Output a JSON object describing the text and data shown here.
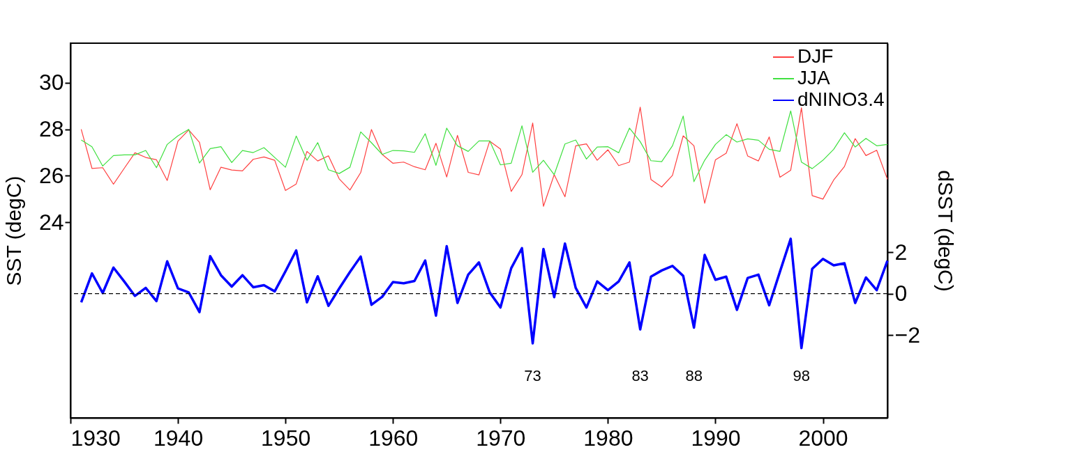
{
  "chart_data": {
    "type": "line",
    "xlabel": null,
    "ylabel": "SST (degC)",
    "y2label": "dSST (degC)",
    "x": [
      1931,
      1932,
      1933,
      1934,
      1935,
      1936,
      1937,
      1938,
      1939,
      1940,
      1941,
      1942,
      1943,
      1944,
      1945,
      1946,
      1947,
      1948,
      1949,
      1950,
      1951,
      1952,
      1953,
      1954,
      1955,
      1956,
      1957,
      1958,
      1959,
      1960,
      1961,
      1962,
      1963,
      1964,
      1965,
      1966,
      1967,
      1968,
      1969,
      1970,
      1971,
      1972,
      1973,
      1974,
      1975,
      1976,
      1977,
      1978,
      1979,
      1980,
      1981,
      1982,
      1983,
      1984,
      1985,
      1986,
      1987,
      1988,
      1989,
      1990,
      1991,
      1992,
      1993,
      1994,
      1995,
      1996,
      1997,
      1998,
      1999,
      2000,
      2001,
      2002,
      2003,
      2004,
      2005,
      2006
    ],
    "series": [
      {
        "name": "DJF",
        "color": "#ff4040",
        "values": [
          28.0,
          26.32,
          26.35,
          25.64,
          26.32,
          26.99,
          26.79,
          26.69,
          25.8,
          27.49,
          27.97,
          27.44,
          25.4,
          26.37,
          26.25,
          26.21,
          26.71,
          26.81,
          26.67,
          25.37,
          25.65,
          27.05,
          26.64,
          26.86,
          25.87,
          25.39,
          26.14,
          27.99,
          26.92,
          26.54,
          26.59,
          26.39,
          26.26,
          27.4,
          25.95,
          27.74,
          26.15,
          26.04,
          27.49,
          27.15,
          25.33,
          26.05,
          28.27,
          24.69,
          26.05,
          25.1,
          27.29,
          27.37,
          26.67,
          27.12,
          26.44,
          26.59,
          28.95,
          25.84,
          25.52,
          26.02,
          27.72,
          27.29,
          24.82,
          26.69,
          26.97,
          28.24,
          26.85,
          26.64,
          27.67,
          25.94,
          26.24,
          28.92,
          25.15,
          25.0,
          25.82,
          26.4,
          27.6,
          26.87,
          27.1,
          25.85
        ]
      },
      {
        "name": "JJA",
        "color": "#40e040",
        "values": [
          27.54,
          27.25,
          26.42,
          26.87,
          26.9,
          26.9,
          27.09,
          26.35,
          27.35,
          27.72,
          28.0,
          26.55,
          27.17,
          27.25,
          26.57,
          27.09,
          27.0,
          27.21,
          26.79,
          26.37,
          27.71,
          26.67,
          27.43,
          26.26,
          26.1,
          26.37,
          27.89,
          27.42,
          26.92,
          27.09,
          27.07,
          27.01,
          27.81,
          26.45,
          28.05,
          27.29,
          27.05,
          27.5,
          27.5,
          26.47,
          26.54,
          28.15,
          26.15,
          26.67,
          26.05,
          27.37,
          27.54,
          26.72,
          27.24,
          27.25,
          26.99,
          28.05,
          27.47,
          26.65,
          26.61,
          27.29,
          28.57,
          25.75,
          26.67,
          27.35,
          27.77,
          27.45,
          27.59,
          27.53,
          27.14,
          27.05,
          28.79,
          26.59,
          26.31,
          26.67,
          27.14,
          27.85,
          27.24,
          27.61,
          27.29,
          27.35
        ]
      },
      {
        "name": "dNINO3.4",
        "color": "#0000ff",
        "axis": "y2",
        "values": [
          -0.42,
          0.98,
          0.03,
          1.26,
          0.59,
          -0.11,
          0.28,
          -0.36,
          1.56,
          0.25,
          0.06,
          -0.89,
          1.81,
          0.89,
          0.34,
          0.89,
          0.31,
          0.41,
          0.11,
          1.08,
          2.09,
          -0.42,
          0.84,
          -0.59,
          0.25,
          1.05,
          1.79,
          -0.54,
          -0.15,
          0.56,
          0.5,
          0.61,
          1.6,
          -1.06,
          2.29,
          -0.45,
          0.92,
          1.51,
          0.06,
          -0.67,
          1.23,
          2.2,
          -2.4,
          2.16,
          -0.17,
          2.42,
          0.28,
          -0.67,
          0.59,
          0.17,
          0.59,
          1.51,
          -1.73,
          0.82,
          1.12,
          1.34,
          0.86,
          -1.64,
          1.87,
          0.67,
          0.82,
          -0.78,
          0.76,
          0.92,
          -0.56,
          1.06,
          2.65,
          -2.63,
          1.2,
          1.68,
          1.37,
          1.47,
          -0.45,
          0.78,
          0.17,
          1.59
        ]
      }
    ],
    "xlim": [
      1930,
      2006
    ],
    "xticks": [
      1930,
      1940,
      1950,
      1960,
      1970,
      1980,
      1990,
      2000
    ],
    "ylim": [
      15.6,
      31.7
    ],
    "yticks": [
      24,
      26,
      28,
      30
    ],
    "y2lim": [
      -6.0,
      12.1
    ],
    "y2ticks": [
      -2,
      0,
      2
    ],
    "ref_lines": [
      {
        "axis": "y2",
        "value": 0,
        "label": null,
        "color": "#000000",
        "line_style": "dashed"
      }
    ],
    "annotations": [
      "73",
      "83",
      "88",
      "98"
    ],
    "legend": "top right",
    "grid": false,
    "marker": "none",
    "line_style": "solid"
  }
}
